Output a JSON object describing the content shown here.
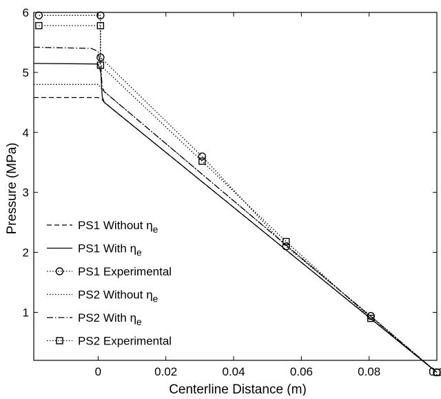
{
  "chart_data": {
    "type": "line",
    "title": "",
    "xlabel": "Centerline Distance (m)",
    "ylabel": "Pressure (MPa)",
    "xlim": [
      -0.019,
      0.1
    ],
    "ylim": [
      0.2,
      6
    ],
    "xticks": [
      {
        "value": 0,
        "label": "0"
      },
      {
        "value": 0.02,
        "label": "0.02"
      },
      {
        "value": 0.04,
        "label": "0.04"
      },
      {
        "value": 0.06,
        "label": "0.06"
      },
      {
        "value": 0.08,
        "label": "0.08"
      },
      {
        "value": 0.1,
        "label": "0.1"
      }
    ],
    "yticks": [
      {
        "value": 1,
        "label": "1"
      },
      {
        "value": 2,
        "label": "2"
      },
      {
        "value": 3,
        "label": "3"
      },
      {
        "value": 4,
        "label": "4"
      },
      {
        "value": 5,
        "label": "5"
      },
      {
        "value": 6,
        "label": "6"
      }
    ],
    "grid": false,
    "legend_position": "bottom-left",
    "series": [
      {
        "name": "PS1 Without ηe",
        "legend_text": "PS1 Without η",
        "legend_sub": "e",
        "style": "dashed",
        "marker": "none",
        "color": "#000000",
        "points": [
          [
            -0.019,
            4.58
          ],
          [
            0.0,
            4.58
          ],
          [
            0.0012,
            4.55
          ],
          [
            0.0018,
            4.5
          ],
          [
            0.1,
            0.0
          ]
        ]
      },
      {
        "name": "PS1 With ηe",
        "legend_text": "PS1 With η",
        "legend_sub": "e",
        "style": "solid",
        "marker": "none",
        "color": "#000000",
        "points": [
          [
            -0.019,
            5.15
          ],
          [
            0.0,
            5.14
          ],
          [
            0.0008,
            5.0
          ],
          [
            0.0012,
            4.6
          ],
          [
            0.0018,
            4.5
          ],
          [
            0.1,
            0.0
          ]
        ]
      },
      {
        "name": "PS1 Experimental",
        "legend_text": "PS1 Experimental",
        "legend_sub": "",
        "style": "dotted",
        "marker": "circle",
        "color": "#000000",
        "points": [
          [
            -0.0175,
            5.95
          ],
          [
            0.0007,
            5.95
          ],
          [
            0.0007,
            5.25
          ],
          [
            0.0307,
            3.6
          ],
          [
            0.0555,
            2.1
          ],
          [
            0.0805,
            0.94
          ],
          [
            0.1,
            0.0
          ]
        ]
      },
      {
        "name": "PS2 Without ηe",
        "legend_text": "PS2 Without η",
        "legend_sub": "e",
        "style": "dotted",
        "marker": "none",
        "color": "#000000",
        "points": [
          [
            -0.019,
            4.8
          ],
          [
            0.0,
            4.8
          ],
          [
            0.0012,
            4.72
          ],
          [
            0.0018,
            4.68
          ],
          [
            0.1,
            0.0
          ]
        ]
      },
      {
        "name": "PS2 With ηe",
        "legend_text": "PS2 With η",
        "legend_sub": "e",
        "style": "dashdot",
        "marker": "none",
        "color": "#000000",
        "points": [
          [
            -0.019,
            5.42
          ],
          [
            -0.002,
            5.4
          ],
          [
            0.0,
            5.35
          ],
          [
            0.0008,
            5.1
          ],
          [
            0.0012,
            4.75
          ],
          [
            0.0018,
            4.68
          ],
          [
            0.1,
            0.0
          ]
        ]
      },
      {
        "name": "PS2 Experimental",
        "legend_text": "PS2 Experimental",
        "legend_sub": "",
        "style": "dotted",
        "marker": "square",
        "color": "#000000",
        "points": [
          [
            -0.0175,
            5.78
          ],
          [
            0.0007,
            5.78
          ],
          [
            0.0007,
            5.12
          ],
          [
            0.0307,
            3.52
          ],
          [
            0.0555,
            2.18
          ],
          [
            0.0805,
            0.9
          ],
          [
            0.1,
            0.0
          ]
        ]
      }
    ]
  }
}
